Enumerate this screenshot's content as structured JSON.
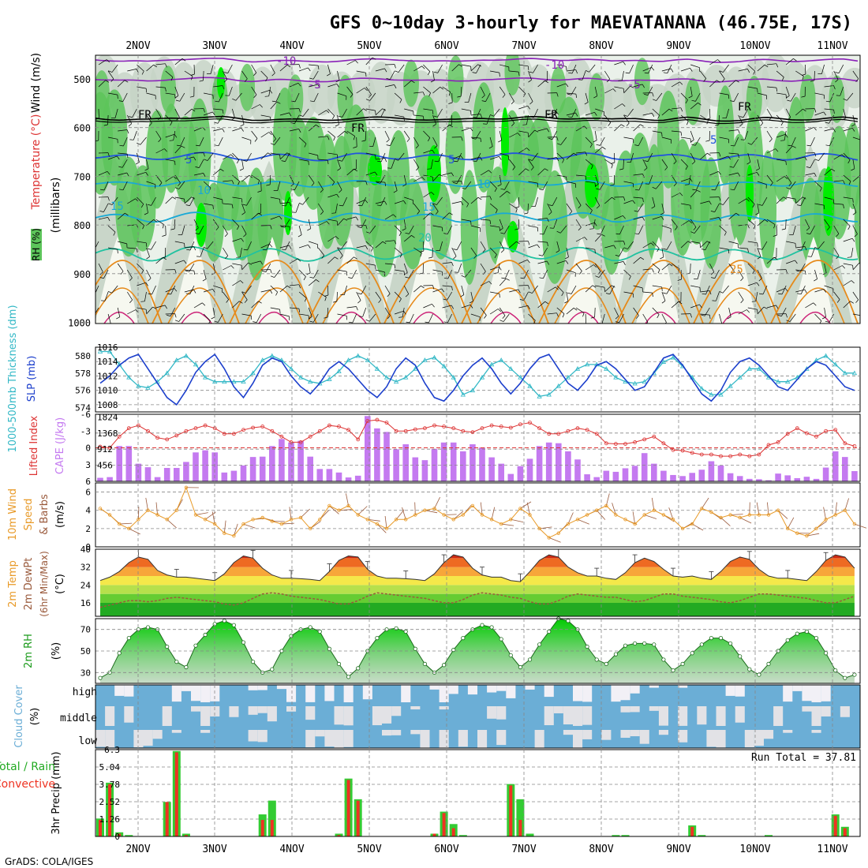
{
  "title": "GFS 0~10day 3-hourly for MAEVATANANA (46.75E, 17S)",
  "credit": "GrADS: COLA/IGES",
  "days": [
    "2NOV",
    "3NOV",
    "4NOV",
    "5NOV",
    "6NOV",
    "7NOV",
    "8NOV",
    "9NOV",
    "10NOV",
    "11NOV"
  ],
  "colors": {
    "rh_green": "#5cc45a",
    "rh_bright": "#00ee00",
    "rh_gray": "#c5d3c5",
    "rh_light": "#eaf1ea",
    "temp_purple": "#8a22b8",
    "temp_blue": "#2255dd",
    "temp_cyan": "#18a9d6",
    "temp_teal": "#20c2a0",
    "temp_orange": "#e68a1a",
    "slp_blue": "#1c3fcc",
    "thick_cyan": "#33b8c6",
    "li_red": "#dd3333",
    "cape_violet": "#c47af0",
    "wind_orange": "#e89a28",
    "dew_brown": "#9a5a3c",
    "sky_blue": "#6baed6",
    "cloud_white": "#f2f0f6",
    "precip_green": "#33cc33",
    "precip_red": "#ee3322"
  },
  "panel1": {
    "ylabel_rh": "RH (%)",
    "ylabel_temp": "Temperature (°C)",
    "ylabel_wind": "Wind (m/s)",
    "ylabel_mb": "(millibars)",
    "ticks": [
      "500",
      "600",
      "700",
      "800",
      "900",
      "1000"
    ],
    "contour_labels": {
      "m10": "-10",
      "m5": "-5",
      "fr": "FR",
      "p5": "5",
      "p10": "10",
      "p15": "15",
      "p20": "20",
      "p25": "25"
    }
  },
  "panel2": {
    "ylabel_thick": "1000-500mb Thickness (dm)",
    "ylabel_slp": "SLP (mb)",
    "left_ticks": [
      "580",
      "578",
      "576",
      "574"
    ],
    "right_ticks": [
      "1016",
      "1014",
      "1012",
      "1010",
      "1008"
    ]
  },
  "panel3": {
    "ylabel_li": "Lifted Index",
    "ylabel_cape": "CAPE (J/kg)",
    "left_ticks": [
      "-6",
      "-3",
      "0",
      "3",
      "6"
    ],
    "right_ticks": [
      "1824",
      "1368",
      "912",
      "456"
    ]
  },
  "panel4": {
    "ylabel_a": "10m Wind",
    "ylabel_b": "Speed",
    "ylabel_c": "& Barbs",
    "ylabel_unit": "(m/s)",
    "ticks": [
      "6",
      "4",
      "2",
      "0"
    ]
  },
  "panel5": {
    "ylabel_a": "2m Temp",
    "ylabel_b": "2m DewPt",
    "ylabel_c": "(6hr Min/Max)",
    "ylabel_unit": "(°C)",
    "ticks": [
      "40",
      "32",
      "24",
      "16"
    ]
  },
  "panel6": {
    "ylabel": "2m RH",
    "ylabel_unit": "(%)",
    "ticks": [
      "70",
      "50",
      "30"
    ]
  },
  "panel7": {
    "ylabel": "Cloud Cover",
    "ylabel_unit": "(%)",
    "levels": [
      "high",
      "middle",
      "low"
    ]
  },
  "panel8": {
    "ylabel_a": "Total / Rain",
    "ylabel_b": "Convective",
    "ylabel_c": "3hr Precip (mm)",
    "ticks": [
      "6.3",
      "5.04",
      "3.78",
      "2.52",
      "1.26",
      "0"
    ],
    "run_total": "Run Total = 37.81"
  },
  "chart_data": [
    {
      "type": "line",
      "title": "1000-500mb Thickness (dm) / SLP (mb)",
      "x_unit": "3-hourly steps from 1 NOV 18Z",
      "series": [
        {
          "name": "SLP (mb)",
          "axis": "right",
          "ylim": [
            1007,
            1016
          ],
          "values": [
            1011,
            1012,
            1013.5,
            1014.5,
            1015,
            1013,
            1011,
            1009,
            1008,
            1010,
            1012.5,
            1014,
            1015,
            1013,
            1010.5,
            1009,
            1011,
            1013.5,
            1014.5,
            1014,
            1012,
            1010.5,
            1009.5,
            1011,
            1013,
            1014,
            1013,
            1011.5,
            1010,
            1009,
            1010.5,
            1013,
            1014.5,
            1013.5,
            1011,
            1009,
            1008.5,
            1010,
            1012,
            1013.5,
            1014.5,
            1013,
            1011,
            1009.5,
            1011,
            1013,
            1014.5,
            1015,
            1013,
            1011,
            1010,
            1011.5,
            1013.5,
            1014,
            1013,
            1011.5,
            1010,
            1010.5,
            1012.5,
            1014.5,
            1015,
            1013.5,
            1011.5,
            1009.5,
            1008.5,
            1010,
            1012.5,
            1014,
            1014.5,
            1013.5,
            1012,
            1010.5,
            1010,
            1011.5,
            1013,
            1014,
            1013.5,
            1012,
            1010.5,
            1010
          ]
        },
        {
          "name": "Thickness (dm)",
          "axis": "left",
          "ylim": [
            573.5,
            581
          ],
          "values": [
            580.5,
            580.5,
            579,
            577.5,
            576.5,
            576.3,
            577,
            578,
            579.5,
            580,
            579,
            577.5,
            577,
            577,
            577,
            577,
            578,
            579.5,
            580,
            579.5,
            578.5,
            577.5,
            577,
            576.8,
            577.3,
            578.2,
            579.5,
            580,
            579.5,
            578.5,
            577.5,
            577,
            577.5,
            578.5,
            579.5,
            579.8,
            578.8,
            577.5,
            575.5,
            576,
            577.5,
            579,
            579.5,
            578.5,
            577.5,
            576.5,
            575.3,
            575.5,
            576.5,
            577.5,
            578.5,
            579,
            579,
            578.5,
            577.5,
            577,
            576.8,
            577,
            578,
            579.3,
            579.8,
            578.8,
            577.5,
            576.2,
            575.5,
            575.5,
            576.5,
            577.5,
            578.5,
            578.5,
            577.5,
            577,
            577,
            577.5,
            578.5,
            579.5,
            580,
            579,
            578,
            578
          ]
        }
      ]
    },
    {
      "type": "bar",
      "title": "Lifted Index / CAPE (J/kg)",
      "series": [
        {
          "name": "CAPE (J/kg)",
          "ylim": [
            0,
            1824
          ],
          "values": [
            100,
            120,
            1000,
            1000,
            500,
            400,
            120,
            380,
            380,
            550,
            820,
            880,
            820,
            250,
            300,
            450,
            690,
            700,
            1000,
            1200,
            1100,
            1150,
            700,
            350,
            350,
            250,
            110,
            160,
            1850,
            1500,
            1400,
            910,
            1050,
            680,
            600,
            920,
            1100,
            1100,
            850,
            1050,
            960,
            680,
            500,
            210,
            430,
            640,
            1000,
            1100,
            1080,
            850,
            620,
            200,
            120,
            300,
            270,
            370,
            440,
            800,
            500,
            300,
            180,
            150,
            240,
            330,
            570,
            450,
            230,
            150,
            70,
            60,
            30,
            220,
            170,
            90,
            130,
            70,
            390,
            850,
            690,
            290
          ]
        },
        {
          "name": "Lifted Index",
          "ylim": [
            6,
            -6
          ],
          "values": [
            -0.2,
            0,
            -2,
            -3.5,
            -4,
            -3,
            -1.8,
            -1.5,
            -2.2,
            -3,
            -3.5,
            -4,
            -3.5,
            -2.5,
            -2.5,
            -3.2,
            -3.6,
            -3.8,
            -3,
            -2,
            -1,
            -1,
            -2,
            -3,
            -4,
            -3.8,
            -3.2,
            -1.5,
            -4.8,
            -5,
            -4.5,
            -3,
            -3,
            -3.3,
            -3.5,
            -4,
            -3.8,
            -3.5,
            -3,
            -2.8,
            -3.5,
            -4,
            -3.8,
            -3.6,
            -4.2,
            -4.5,
            -3.5,
            -2.5,
            -2.5,
            -3,
            -3.5,
            -3.2,
            -2.5,
            -0.8,
            -0.7,
            -0.7,
            -1,
            -1.5,
            -2,
            -0.8,
            0.4,
            0.5,
            0.9,
            1.2,
            1.2,
            1.5,
            1.5,
            1.2,
            1.5,
            1.2,
            -0.5,
            -1,
            -2.5,
            -3.5,
            -2.6,
            -2,
            -3,
            -3.2,
            -0.8,
            -0.3
          ]
        }
      ]
    },
    {
      "type": "line",
      "title": "10m Wind Speed (m/s)",
      "ylim": [
        0,
        7
      ],
      "values": [
        4.2,
        3.5,
        2.5,
        2,
        3,
        4,
        3.5,
        3,
        4,
        6.5,
        3.5,
        3,
        2.5,
        1.5,
        1.2,
        2.5,
        3,
        3.2,
        2.8,
        2.5,
        3,
        3.2,
        2,
        3,
        4.5,
        4,
        4.5,
        3.5,
        3,
        2.5,
        2,
        3,
        3,
        3.5,
        4,
        4.2,
        3.5,
        3,
        3.5,
        4.5,
        3.5,
        3,
        2.5,
        3,
        4.2,
        3.5,
        2,
        1,
        1.5,
        2.5,
        3,
        3.5,
        4,
        4.5,
        3.5,
        3,
        2.5,
        3.5,
        4,
        3.5,
        3,
        2,
        2.5,
        4.2,
        3.8,
        3.2,
        3.5,
        3.2,
        3.5,
        3.5,
        3.5,
        4,
        2,
        1.5,
        1.2,
        2,
        3,
        3.5,
        4,
        2.5
      ]
    },
    {
      "type": "area",
      "title": "2m Temp / 2m DewPt (°C)",
      "ylim": [
        10,
        40
      ],
      "series": [
        {
          "name": "2m Temp",
          "values": [
            26,
            27.5,
            30,
            34,
            36.5,
            35.5,
            30.5,
            28.5,
            27.5,
            27.5,
            27,
            26.5,
            26,
            29,
            34,
            37,
            36,
            31.5,
            28.5,
            27,
            27,
            26.8,
            26.5,
            26,
            30,
            35,
            37,
            36.5,
            31,
            28,
            27,
            27,
            26.8,
            26.5,
            26,
            29,
            34,
            37.5,
            36.5,
            31.5,
            28.5,
            27.5,
            27.5,
            26,
            25.5,
            30,
            35,
            37.5,
            36.5,
            32,
            29.5,
            28,
            28,
            27,
            26.5,
            29.5,
            34,
            36,
            34.5,
            31,
            28,
            27.5,
            28,
            27,
            26.5,
            30,
            34.5,
            36.5,
            35.5,
            31,
            28,
            27,
            27,
            26.5,
            26,
            30,
            35,
            37.5,
            36.5,
            31.5
          ]
        },
        {
          "name": "2m DewPt",
          "values": [
            14,
            15,
            16,
            17,
            17,
            16.5,
            17,
            18,
            18.5,
            18,
            17.5,
            17,
            16.5,
            15.5,
            15,
            16,
            18,
            20,
            20.5,
            20,
            19,
            18.5,
            18,
            17.5,
            16.5,
            15.5,
            15.5,
            17,
            19,
            20.5,
            20,
            19.5,
            19,
            18.5,
            18,
            17,
            16,
            16,
            17.5,
            19.5,
            20.5,
            20,
            19.5,
            18.5,
            18,
            16.5,
            15.5,
            15.5,
            17,
            19,
            20,
            19.5,
            19,
            18.5,
            18.5,
            17.5,
            16.5,
            17,
            18.5,
            20,
            20,
            19,
            18.5,
            18,
            17.5,
            16.5,
            16,
            17,
            18.5,
            20,
            20,
            19.5,
            19,
            18.5,
            18,
            17,
            16,
            16,
            17.5,
            19
          ]
        }
      ]
    },
    {
      "type": "area",
      "title": "2m RH (%)",
      "ylim": [
        20,
        80
      ],
      "values": [
        25,
        30,
        48,
        62,
        70,
        72,
        70,
        54,
        40,
        35,
        55,
        65,
        75,
        78,
        74,
        58,
        40,
        30,
        33,
        50,
        64,
        70,
        72,
        68,
        52,
        38,
        26,
        34,
        50,
        62,
        70,
        71,
        68,
        52,
        38,
        30,
        37,
        51,
        62,
        70,
        74,
        72,
        61,
        46,
        35,
        42,
        56,
        68,
        80,
        78,
        70,
        54,
        42,
        38,
        47,
        55,
        57,
        57,
        56,
        42,
        32,
        38,
        48,
        56,
        62,
        62,
        57,
        45,
        33,
        28,
        38,
        50,
        60,
        66,
        68,
        62,
        48,
        32,
        25,
        28
      ]
    },
    {
      "type": "bar",
      "title": "3hr Precip (mm)",
      "ylim": [
        0,
        6.3
      ],
      "run_total": 37.81,
      "series": [
        {
          "name": "Total",
          "values": [
            1.3,
            3.9,
            0.3,
            0.1,
            0,
            0,
            0,
            2.5,
            6.2,
            0.2,
            0,
            0,
            0,
            0,
            0,
            0,
            0,
            1.6,
            2.6,
            0,
            0,
            0,
            0,
            0,
            0,
            0.2,
            4.2,
            2.7,
            0,
            0,
            0,
            0,
            0,
            0,
            0,
            0.2,
            1.8,
            0.9,
            0.1,
            0,
            0,
            0,
            0,
            3.8,
            2.7,
            0.2,
            0,
            0,
            0,
            0,
            0,
            0,
            0,
            0,
            0.1,
            0.1,
            0,
            0,
            0,
            0,
            0,
            0,
            0.8,
            0.1,
            0,
            0,
            0,
            0,
            0,
            0,
            0.1,
            0,
            0,
            0,
            0,
            0,
            0,
            1.6,
            0.7,
            0
          ]
        },
        {
          "name": "Convective",
          "values": [
            1.2,
            3.8,
            0.2,
            0,
            0,
            0,
            0,
            2.5,
            6.1,
            0.1,
            0,
            0,
            0,
            0,
            0,
            0,
            0,
            1.2,
            1.2,
            0,
            0,
            0,
            0,
            0,
            0,
            0.1,
            4.1,
            2.6,
            0,
            0,
            0,
            0,
            0,
            0,
            0,
            0.2,
            1.7,
            0.6,
            0,
            0,
            0,
            0,
            0,
            3.7,
            1.2,
            0,
            0,
            0,
            0,
            0,
            0,
            0,
            0,
            0,
            0,
            0,
            0,
            0,
            0,
            0,
            0,
            0,
            0.7,
            0,
            0,
            0,
            0,
            0,
            0,
            0,
            0,
            0,
            0,
            0,
            0,
            0,
            0,
            1.5,
            0.6,
            0
          ]
        }
      ]
    }
  ]
}
